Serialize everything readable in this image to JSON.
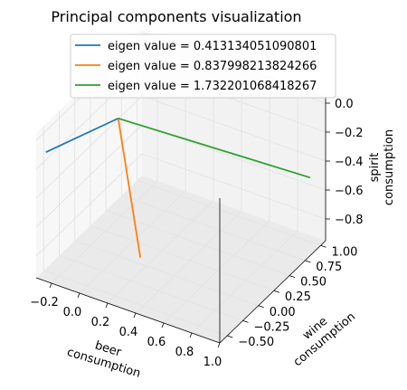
{
  "chart_data": {
    "type": "line3d",
    "title": "Principal components visualization",
    "x_axis": {
      "label_line1": "beer",
      "label_line2": "consumption",
      "ticks": [
        -0.2,
        0.0,
        0.2,
        0.4,
        0.6,
        0.8,
        1.0
      ],
      "tick_labels": [
        "−0.2",
        "0.0",
        "0.2",
        "0.4",
        "0.6",
        "0.8",
        "1.0"
      ],
      "lim": [
        -0.31,
        1.0
      ]
    },
    "y_axis": {
      "label_line1": "wine",
      "label_line2": "consumption",
      "ticks": [
        -0.5,
        -0.25,
        0.0,
        0.25,
        0.5,
        0.75,
        1.0
      ],
      "tick_labels": [
        "−0.50",
        "−0.25",
        "0.00",
        "0.25",
        "0.50",
        "0.75",
        "1.00"
      ],
      "lim": [
        -0.62,
        1.08
      ]
    },
    "z_axis": {
      "label_line1": "spirit",
      "label_line2": "consumption",
      "ticks": [
        -0.8,
        -0.6,
        -0.4,
        -0.2,
        0.0
      ],
      "tick_labels": [
        "−0.8",
        "−0.6",
        "−0.4",
        "−0.2",
        "0.0"
      ],
      "lim": [
        -0.95,
        0.05
      ]
    },
    "origin": [
      0,
      0,
      0
    ],
    "series": [
      {
        "name": "eigen value = 0.413134051090801",
        "color": "#1f77b4",
        "vector": [
          -0.25,
          -0.6,
          -0.07
        ]
      },
      {
        "name": "eigen value = 0.837998213824266",
        "color": "#ff7f0e",
        "vector": [
          0.18,
          -0.05,
          -0.88
        ]
      },
      {
        "name": "eigen value = 1.732201068418267",
        "color": "#2ca02c",
        "vector": [
          0.97,
          0.9,
          -0.45
        ]
      }
    ],
    "grid": true,
    "legend_position": "upper-center"
  }
}
